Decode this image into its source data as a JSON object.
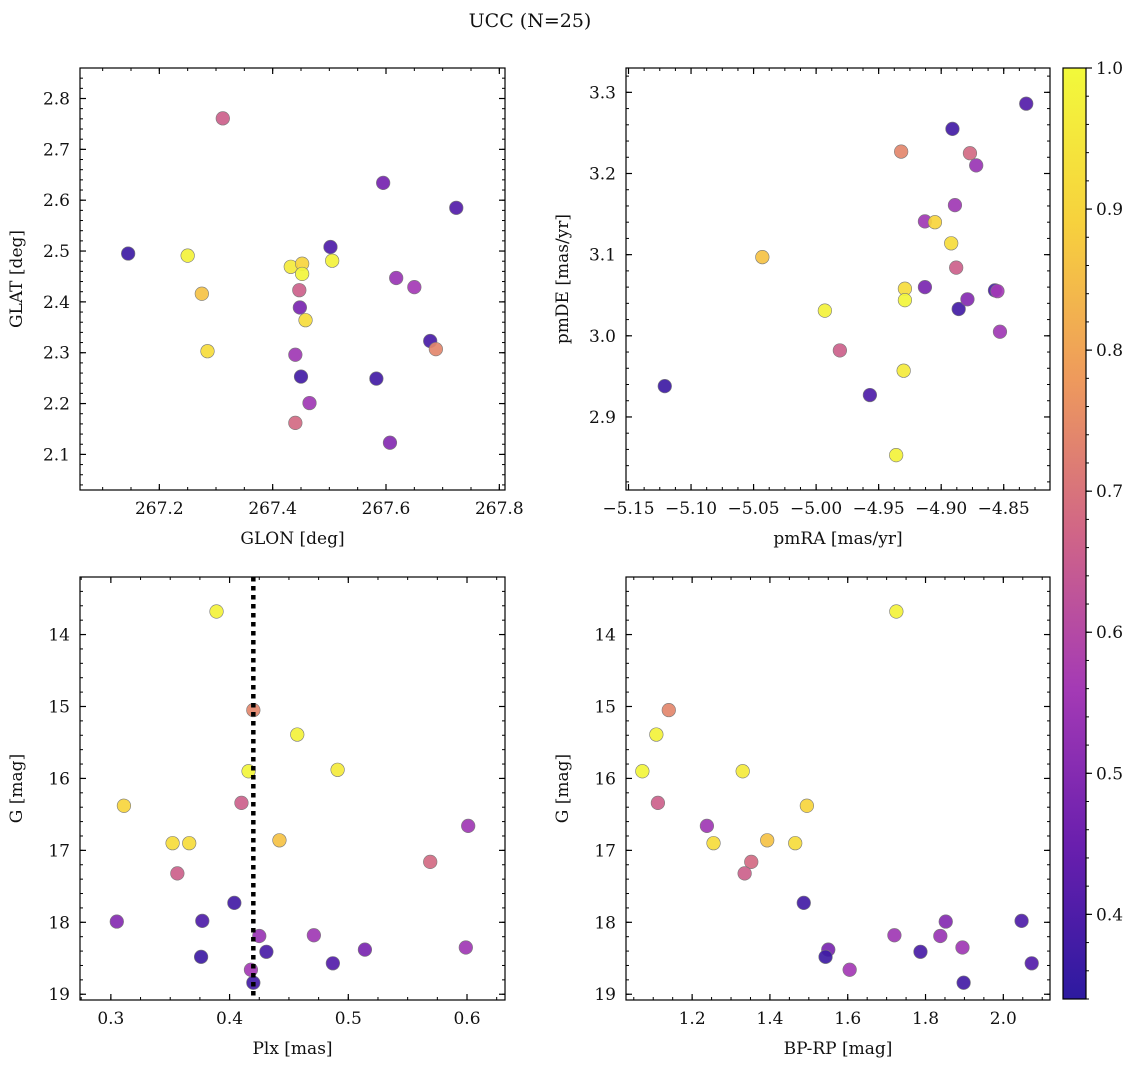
{
  "figure": {
    "title": "UCC (N=25)"
  },
  "colormap": {
    "name": "plasma",
    "stops": [
      "#2d1aa0",
      "#6a1fae",
      "#a43ab5",
      "#d06587",
      "#ee9a5c",
      "#f7d13d",
      "#f2f93b"
    ],
    "range": [
      0.34,
      1.0
    ],
    "ticks": [
      0.4,
      0.5,
      0.6,
      0.7,
      0.8,
      0.9,
      1.0
    ],
    "tick_labels": [
      "0.4",
      "0.5",
      "0.6",
      "0.7",
      "0.8",
      "0.9",
      "1.0"
    ]
  },
  "chart_data": [
    {
      "type": "scatter",
      "id": "glon-glat",
      "xlabel": "GLON [deg]",
      "ylabel": "GLAT [deg]",
      "xlim": [
        267.06,
        267.81
      ],
      "ylim": [
        2.03,
        2.86
      ],
      "y_inverted": false,
      "xticks": [
        267.2,
        267.4,
        267.6,
        267.8
      ],
      "xtick_labels": [
        "267.2",
        "267.4",
        "267.6",
        "267.8"
      ],
      "yticks": [
        2.1,
        2.2,
        2.3,
        2.4,
        2.5,
        2.6,
        2.7,
        2.8
      ],
      "ytick_labels": [
        "2.1",
        "2.2",
        "2.3",
        "2.4",
        "2.5",
        "2.6",
        "2.7",
        "2.8"
      ],
      "points": [
        {
          "x": 267.145,
          "y": 2.495,
          "c": 0.37
        },
        {
          "x": 267.25,
          "y": 2.491,
          "c": 0.98
        },
        {
          "x": 267.275,
          "y": 2.416,
          "c": 0.86
        },
        {
          "x": 267.285,
          "y": 2.303,
          "c": 0.92
        },
        {
          "x": 267.312,
          "y": 2.761,
          "c": 0.66
        },
        {
          "x": 267.432,
          "y": 2.469,
          "c": 0.96
        },
        {
          "x": 267.44,
          "y": 2.296,
          "c": 0.55
        },
        {
          "x": 267.44,
          "y": 2.162,
          "c": 0.68
        },
        {
          "x": 267.447,
          "y": 2.423,
          "c": 0.66
        },
        {
          "x": 267.448,
          "y": 2.389,
          "c": 0.48
        },
        {
          "x": 267.45,
          "y": 2.253,
          "c": 0.38
        },
        {
          "x": 267.452,
          "y": 2.475,
          "c": 0.9
        },
        {
          "x": 267.452,
          "y": 2.455,
          "c": 0.99
        },
        {
          "x": 267.458,
          "y": 2.364,
          "c": 0.92
        },
        {
          "x": 267.465,
          "y": 2.201,
          "c": 0.55
        },
        {
          "x": 267.502,
          "y": 2.508,
          "c": 0.4
        },
        {
          "x": 267.505,
          "y": 2.481,
          "c": 0.98
        },
        {
          "x": 267.583,
          "y": 2.249,
          "c": 0.38
        },
        {
          "x": 267.595,
          "y": 2.634,
          "c": 0.47
        },
        {
          "x": 267.607,
          "y": 2.123,
          "c": 0.5
        },
        {
          "x": 267.618,
          "y": 2.447,
          "c": 0.54
        },
        {
          "x": 267.65,
          "y": 2.429,
          "c": 0.56
        },
        {
          "x": 267.678,
          "y": 2.323,
          "c": 0.39
        },
        {
          "x": 267.688,
          "y": 2.307,
          "c": 0.74
        },
        {
          "x": 267.724,
          "y": 2.585,
          "c": 0.41
        }
      ]
    },
    {
      "type": "scatter",
      "id": "pmra-pmde",
      "xlabel": "pmRA [mas/yr]",
      "ylabel": "pmDE [mas/yr]",
      "xlim": [
        -5.152,
        -4.813
      ],
      "ylim": [
        2.81,
        3.33
      ],
      "y_inverted": false,
      "xticks": [
        -5.15,
        -5.1,
        -5.05,
        -5.0,
        -4.95,
        -4.9,
        -4.85
      ],
      "xtick_labels": [
        "−5.15",
        "−5.10",
        "−5.05",
        "−5.00",
        "−4.95",
        "−4.90",
        "−4.85"
      ],
      "yticks": [
        2.9,
        3.0,
        3.1,
        3.2,
        3.3
      ],
      "ytick_labels": [
        "2.9",
        "3.0",
        "3.1",
        "3.2",
        "3.3"
      ],
      "points": [
        {
          "x": -5.121,
          "y": 2.938,
          "c": 0.37
        },
        {
          "x": -5.043,
          "y": 3.097,
          "c": 0.86
        },
        {
          "x": -4.993,
          "y": 3.031,
          "c": 0.98
        },
        {
          "x": -4.981,
          "y": 2.982,
          "c": 0.66
        },
        {
          "x": -4.957,
          "y": 2.927,
          "c": 0.4
        },
        {
          "x": -4.936,
          "y": 2.853,
          "c": 0.98
        },
        {
          "x": -4.932,
          "y": 3.227,
          "c": 0.74
        },
        {
          "x": -4.929,
          "y": 3.058,
          "c": 0.92
        },
        {
          "x": -4.929,
          "y": 3.044,
          "c": 0.99
        },
        {
          "x": -4.93,
          "y": 2.957,
          "c": 0.96
        },
        {
          "x": -4.913,
          "y": 3.141,
          "c": 0.55
        },
        {
          "x": -4.913,
          "y": 3.06,
          "c": 0.48
        },
        {
          "x": -4.905,
          "y": 3.14,
          "c": 0.9
        },
        {
          "x": -4.892,
          "y": 3.114,
          "c": 0.92
        },
        {
          "x": -4.891,
          "y": 3.255,
          "c": 0.38
        },
        {
          "x": -4.889,
          "y": 3.161,
          "c": 0.55
        },
        {
          "x": -4.888,
          "y": 3.084,
          "c": 0.66
        },
        {
          "x": -4.886,
          "y": 3.033,
          "c": 0.38
        },
        {
          "x": -4.879,
          "y": 3.045,
          "c": 0.5
        },
        {
          "x": -4.877,
          "y": 3.225,
          "c": 0.68
        },
        {
          "x": -4.872,
          "y": 3.21,
          "c": 0.54
        },
        {
          "x": -4.857,
          "y": 3.056,
          "c": 0.39
        },
        {
          "x": -4.855,
          "y": 3.055,
          "c": 0.56
        },
        {
          "x": -4.853,
          "y": 3.005,
          "c": 0.55
        },
        {
          "x": -4.832,
          "y": 3.286,
          "c": 0.41
        }
      ]
    },
    {
      "type": "scatter",
      "id": "plx-g",
      "xlabel": "Plx [mas]",
      "ylabel": "G [mag]",
      "xlim": [
        0.274,
        0.632
      ],
      "ylim": [
        13.2,
        19.08
      ],
      "y_inverted": true,
      "xticks": [
        0.3,
        0.4,
        0.5,
        0.6
      ],
      "xtick_labels": [
        "0.3",
        "0.4",
        "0.5",
        "0.6"
      ],
      "yticks": [
        14,
        15,
        16,
        17,
        18,
        19
      ],
      "ytick_labels": [
        "14",
        "15",
        "16",
        "17",
        "18",
        "19"
      ],
      "vline": {
        "x": 0.42,
        "style": "dotted",
        "color": "#000000"
      },
      "points": [
        {
          "x": 0.389,
          "y": 13.68,
          "c": 0.98
        },
        {
          "x": 0.42,
          "y": 15.05,
          "c": 0.74
        },
        {
          "x": 0.457,
          "y": 15.39,
          "c": 0.98
        },
        {
          "x": 0.416,
          "y": 15.9,
          "c": 0.99
        },
        {
          "x": 0.491,
          "y": 15.88,
          "c": 0.96
        },
        {
          "x": 0.311,
          "y": 16.38,
          "c": 0.9
        },
        {
          "x": 0.41,
          "y": 16.34,
          "c": 0.66
        },
        {
          "x": 0.601,
          "y": 16.66,
          "c": 0.55
        },
        {
          "x": 0.442,
          "y": 16.86,
          "c": 0.86
        },
        {
          "x": 0.352,
          "y": 16.9,
          "c": 0.92
        },
        {
          "x": 0.366,
          "y": 16.9,
          "c": 0.92
        },
        {
          "x": 0.569,
          "y": 17.16,
          "c": 0.68
        },
        {
          "x": 0.356,
          "y": 17.32,
          "c": 0.66
        },
        {
          "x": 0.404,
          "y": 17.73,
          "c": 0.38
        },
        {
          "x": 0.305,
          "y": 17.99,
          "c": 0.5
        },
        {
          "x": 0.377,
          "y": 17.98,
          "c": 0.4
        },
        {
          "x": 0.425,
          "y": 18.19,
          "c": 0.54
        },
        {
          "x": 0.471,
          "y": 18.18,
          "c": 0.55
        },
        {
          "x": 0.514,
          "y": 18.38,
          "c": 0.48
        },
        {
          "x": 0.599,
          "y": 18.35,
          "c": 0.55
        },
        {
          "x": 0.431,
          "y": 18.41,
          "c": 0.39
        },
        {
          "x": 0.376,
          "y": 18.48,
          "c": 0.37
        },
        {
          "x": 0.487,
          "y": 18.57,
          "c": 0.41
        },
        {
          "x": 0.418,
          "y": 18.66,
          "c": 0.56
        },
        {
          "x": 0.42,
          "y": 18.84,
          "c": 0.38
        }
      ]
    },
    {
      "type": "scatter",
      "id": "bprp-g",
      "xlabel": "BP-RP [mag]",
      "ylabel": "G [mag]",
      "xlim": [
        1.03,
        2.12
      ],
      "ylim": [
        13.2,
        19.08
      ],
      "y_inverted": true,
      "xticks": [
        1.2,
        1.4,
        1.6,
        1.8,
        2.0
      ],
      "xtick_labels": [
        "1.2",
        "1.4",
        "1.6",
        "1.8",
        "2.0"
      ],
      "yticks": [
        14,
        15,
        16,
        17,
        18,
        19
      ],
      "ytick_labels": [
        "14",
        "15",
        "16",
        "17",
        "18",
        "19"
      ],
      "points": [
        {
          "x": 1.725,
          "y": 13.68,
          "c": 0.98
        },
        {
          "x": 1.14,
          "y": 15.05,
          "c": 0.74
        },
        {
          "x": 1.108,
          "y": 15.39,
          "c": 0.98
        },
        {
          "x": 1.072,
          "y": 15.9,
          "c": 0.99
        },
        {
          "x": 1.33,
          "y": 15.9,
          "c": 0.96
        },
        {
          "x": 1.495,
          "y": 16.38,
          "c": 0.9
        },
        {
          "x": 1.112,
          "y": 16.34,
          "c": 0.66
        },
        {
          "x": 1.238,
          "y": 16.66,
          "c": 0.55
        },
        {
          "x": 1.393,
          "y": 16.86,
          "c": 0.86
        },
        {
          "x": 1.255,
          "y": 16.9,
          "c": 0.92
        },
        {
          "x": 1.465,
          "y": 16.9,
          "c": 0.92
        },
        {
          "x": 1.352,
          "y": 17.16,
          "c": 0.68
        },
        {
          "x": 1.335,
          "y": 17.32,
          "c": 0.66
        },
        {
          "x": 1.487,
          "y": 17.73,
          "c": 0.38
        },
        {
          "x": 1.852,
          "y": 17.99,
          "c": 0.5
        },
        {
          "x": 2.047,
          "y": 17.98,
          "c": 0.4
        },
        {
          "x": 1.72,
          "y": 18.18,
          "c": 0.55
        },
        {
          "x": 1.838,
          "y": 18.19,
          "c": 0.54
        },
        {
          "x": 1.55,
          "y": 18.38,
          "c": 0.48
        },
        {
          "x": 1.895,
          "y": 18.35,
          "c": 0.55
        },
        {
          "x": 1.787,
          "y": 18.41,
          "c": 0.39
        },
        {
          "x": 1.543,
          "y": 18.48,
          "c": 0.37
        },
        {
          "x": 2.073,
          "y": 18.57,
          "c": 0.41
        },
        {
          "x": 1.605,
          "y": 18.66,
          "c": 0.56
        },
        {
          "x": 1.898,
          "y": 18.84,
          "c": 0.38
        }
      ]
    }
  ]
}
